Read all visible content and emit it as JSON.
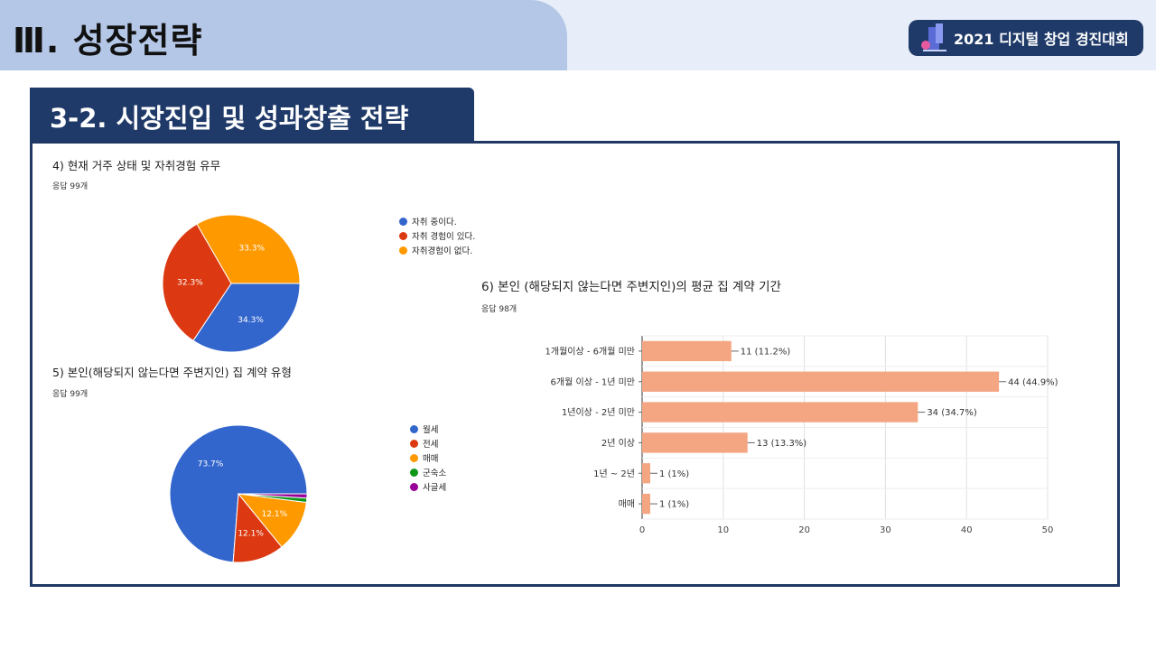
{
  "header": {
    "section_title": "Ⅲ. 성장전략",
    "badge_text": "2021 디지털 창업 경진대회",
    "subtitle": "3-2. 시장진입 및 성과창출 전략"
  },
  "q4": {
    "title": "4) 현재 거주 상태 및 자취경험 유무",
    "responses": "응답 99개"
  },
  "q5": {
    "title": "5) 본인(해당되지 않는다면 주변지인) 집 계약 유형",
    "responses": "응답 99개"
  },
  "q6": {
    "title": "6) 본인 (해당되지 않는다면 주변지인)의 평균 집 계약 기간",
    "responses": "응답 98개"
  },
  "chart_data": [
    {
      "type": "pie",
      "labels": [
        "자취 중이다.",
        "자취 경험이 있다.",
        "자취경험이 없다."
      ],
      "values": [
        34.3,
        32.3,
        33.3
      ],
      "value_labels": [
        "34.3%",
        "32.3%",
        "33.3%"
      ],
      "colors": [
        "#3366cc",
        "#dc3912",
        "#ff9900"
      ],
      "legend_position": "right"
    },
    {
      "type": "pie",
      "labels": [
        "월세",
        "전세",
        "매매",
        "군숙소",
        "사글세"
      ],
      "values": [
        73.7,
        12.1,
        12.1,
        1.0,
        1.0
      ],
      "value_labels": [
        "73.7%",
        "12.1%",
        "12.1%",
        "",
        ""
      ],
      "colors": [
        "#3366cc",
        "#dc3912",
        "#ff9900",
        "#109618",
        "#990099"
      ],
      "legend_position": "right"
    },
    {
      "type": "bar",
      "orientation": "horizontal",
      "categories": [
        "1개월이상 - 6개월 미만",
        "6개월 이상 - 1년 미만",
        "1년이상 - 2년 미만",
        "2년 이상",
        "1년 ~ 2년",
        "매매"
      ],
      "values": [
        11,
        44,
        34,
        13,
        1,
        1
      ],
      "value_labels": [
        "11 (11.2%)",
        "44 (44.9%)",
        "34 (34.7%)",
        "13 (13.3%)",
        "1 (1%)",
        "1 (1%)"
      ],
      "xlim": [
        0,
        50
      ],
      "xticks": [
        "0",
        "10",
        "20",
        "30",
        "40",
        "50"
      ],
      "bar_color": "#f4a582",
      "grid": true
    }
  ]
}
